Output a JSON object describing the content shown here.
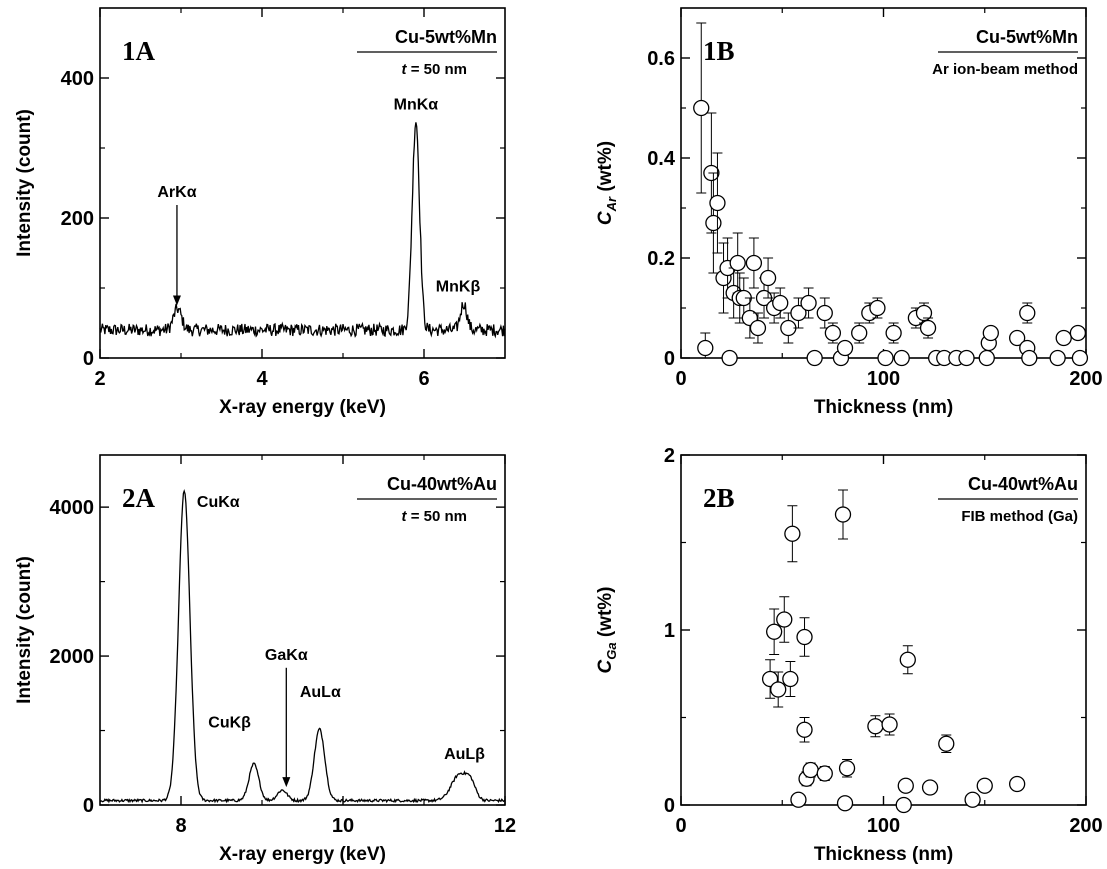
{
  "chart_data": [
    {
      "id": "1A",
      "type": "line",
      "panel_label": "1A",
      "legend": {
        "main": "Cu-5wt%Mn",
        "sub_prefix": "t",
        "sub_suffix": " = 50 nm"
      },
      "xlabel": "X-ray energy (keV)",
      "ylabel": "Intensity (count)",
      "xlim": [
        2,
        7
      ],
      "ylim": [
        0,
        500
      ],
      "xticks": [
        2,
        4,
        6
      ],
      "xtick_labels": [
        "2",
        "4",
        "6"
      ],
      "yticks": [
        0,
        200,
        400
      ],
      "ytick_labels": [
        "0",
        "200",
        "400"
      ],
      "baseline": 40,
      "noise": 9,
      "peaks": [
        {
          "center": 2.957,
          "height": 30,
          "width": 0.05
        },
        {
          "center": 5.9,
          "height": 300,
          "width": 0.045
        },
        {
          "center": 6.49,
          "height": 38,
          "width": 0.04
        }
      ],
      "annotations": [
        {
          "text": "ArKα",
          "x": 2.95,
          "y": 230,
          "arrow_to": 75
        },
        {
          "text": "MnKα",
          "x": 5.9,
          "y": 355
        },
        {
          "text": "MnKβ",
          "x": 6.42,
          "y": 95
        }
      ]
    },
    {
      "id": "1B",
      "type": "scatter",
      "panel_label": "1B",
      "legend": {
        "main": "Cu-5wt%Mn",
        "sub": "Ar ion-beam method"
      },
      "xlabel": "Thickness (nm)",
      "ylabel_sym": "C",
      "ylabel_sub": "Ar",
      "ylabel_unit": " (wt%)",
      "xlim": [
        0,
        200
      ],
      "ylim": [
        0,
        0.7
      ],
      "xticks": [
        0,
        100,
        200
      ],
      "xtick_labels": [
        "0",
        "100",
        "200"
      ],
      "yticks": [
        0,
        0.2,
        0.4,
        0.6
      ],
      "ytick_labels": [
        "0",
        "0.2",
        "0.4",
        "0.6"
      ],
      "points": [
        {
          "x": 10,
          "y": 0.5,
          "err": 0.17
        },
        {
          "x": 12,
          "y": 0.02,
          "err": 0.03
        },
        {
          "x": 15,
          "y": 0.37,
          "err": 0.12
        },
        {
          "x": 16,
          "y": 0.27,
          "err": 0.1
        },
        {
          "x": 18,
          "y": 0.31,
          "err": 0.1
        },
        {
          "x": 21,
          "y": 0.16,
          "err": 0.07
        },
        {
          "x": 23,
          "y": 0.18,
          "err": 0.06
        },
        {
          "x": 24,
          "y": 0.0,
          "err": 0
        },
        {
          "x": 26,
          "y": 0.13,
          "err": 0.05
        },
        {
          "x": 28,
          "y": 0.19,
          "err": 0.06
        },
        {
          "x": 29,
          "y": 0.12,
          "err": 0.05
        },
        {
          "x": 31,
          "y": 0.12,
          "err": 0.04
        },
        {
          "x": 34,
          "y": 0.08,
          "err": 0.04
        },
        {
          "x": 36,
          "y": 0.19,
          "err": 0.05
        },
        {
          "x": 38,
          "y": 0.06,
          "err": 0.03
        },
        {
          "x": 41,
          "y": 0.12,
          "err": 0.04
        },
        {
          "x": 43,
          "y": 0.16,
          "err": 0.04
        },
        {
          "x": 46,
          "y": 0.1,
          "err": 0.03
        },
        {
          "x": 49,
          "y": 0.11,
          "err": 0.03
        },
        {
          "x": 53,
          "y": 0.06,
          "err": 0.03
        },
        {
          "x": 58,
          "y": 0.09,
          "err": 0.03
        },
        {
          "x": 63,
          "y": 0.11,
          "err": 0.03
        },
        {
          "x": 66,
          "y": 0.0,
          "err": 0
        },
        {
          "x": 71,
          "y": 0.09,
          "err": 0.03
        },
        {
          "x": 75,
          "y": 0.05,
          "err": 0.02
        },
        {
          "x": 79,
          "y": 0.0,
          "err": 0
        },
        {
          "x": 81,
          "y": 0.02,
          "err": 0.01
        },
        {
          "x": 88,
          "y": 0.05,
          "err": 0.02
        },
        {
          "x": 93,
          "y": 0.09,
          "err": 0.02
        },
        {
          "x": 97,
          "y": 0.1,
          "err": 0.02
        },
        {
          "x": 101,
          "y": 0.0,
          "err": 0
        },
        {
          "x": 105,
          "y": 0.05,
          "err": 0.02
        },
        {
          "x": 109,
          "y": 0.0,
          "err": 0
        },
        {
          "x": 116,
          "y": 0.08,
          "err": 0.02
        },
        {
          "x": 120,
          "y": 0.09,
          "err": 0.02
        },
        {
          "x": 122,
          "y": 0.06,
          "err": 0.02
        },
        {
          "x": 126,
          "y": 0.0,
          "err": 0
        },
        {
          "x": 130,
          "y": 0.0,
          "err": 0
        },
        {
          "x": 136,
          "y": 0.0,
          "err": 0
        },
        {
          "x": 141,
          "y": 0.0,
          "err": 0
        },
        {
          "x": 151,
          "y": 0.0,
          "err": 0
        },
        {
          "x": 152,
          "y": 0.03,
          "err": 0.01
        },
        {
          "x": 153,
          "y": 0.05,
          "err": 0.01
        },
        {
          "x": 166,
          "y": 0.04,
          "err": 0.01
        },
        {
          "x": 171,
          "y": 0.09,
          "err": 0.02
        },
        {
          "x": 171,
          "y": 0.02,
          "err": 0.01
        },
        {
          "x": 172,
          "y": 0.0,
          "err": 0
        },
        {
          "x": 186,
          "y": 0.0,
          "err": 0
        },
        {
          "x": 189,
          "y": 0.04,
          "err": 0.01
        },
        {
          "x": 196,
          "y": 0.05,
          "err": 0.01
        },
        {
          "x": 197,
          "y": 0.0,
          "err": 0
        }
      ]
    },
    {
      "id": "2A",
      "type": "line",
      "panel_label": "2A",
      "legend": {
        "main": "Cu-40wt%Au",
        "sub_prefix": "t",
        "sub_suffix": " = 50 nm"
      },
      "xlabel": "X-ray energy (keV)",
      "ylabel": "Intensity (count)",
      "xlim": [
        7,
        12
      ],
      "ylim": [
        0,
        4700
      ],
      "xticks": [
        8,
        10,
        12
      ],
      "xtick_labels": [
        "8",
        "10",
        "12"
      ],
      "yticks": [
        0,
        2000,
        4000
      ],
      "ytick_labels": [
        "0",
        "2000",
        "4000"
      ],
      "baseline": 60,
      "noise": 18,
      "peaks": [
        {
          "center": 8.04,
          "height": 4150,
          "width": 0.07
        },
        {
          "center": 8.9,
          "height": 490,
          "width": 0.06
        },
        {
          "center": 9.25,
          "height": 140,
          "width": 0.06
        },
        {
          "center": 9.71,
          "height": 960,
          "width": 0.065
        },
        {
          "center": 11.44,
          "height": 350,
          "width": 0.1
        },
        {
          "center": 11.58,
          "height": 180,
          "width": 0.06
        }
      ],
      "annotations": [
        {
          "text": "CuKα",
          "x": 8.46,
          "y": 4000
        },
        {
          "text": "CuKβ",
          "x": 8.6,
          "y": 1040
        },
        {
          "text": "GaKα",
          "x": 9.3,
          "y": 1950,
          "arrow_to": 240
        },
        {
          "text": "AuLα",
          "x": 9.72,
          "y": 1450
        },
        {
          "text": "AuLβ",
          "x": 11.5,
          "y": 620
        }
      ]
    },
    {
      "id": "2B",
      "type": "scatter",
      "panel_label": "2B",
      "legend": {
        "main": "Cu-40wt%Au",
        "sub": "FIB method (Ga)"
      },
      "xlabel": "Thickness (nm)",
      "ylabel_sym": "C",
      "ylabel_sub": "Ga",
      "ylabel_unit": " (wt%)",
      "xlim": [
        0,
        200
      ],
      "ylim": [
        0,
        2
      ],
      "xticks": [
        0,
        100,
        200
      ],
      "xtick_labels": [
        "0",
        "100",
        "200"
      ],
      "yticks": [
        0,
        1,
        2
      ],
      "ytick_labels": [
        "0",
        "1",
        "2"
      ],
      "points": [
        {
          "x": 44,
          "y": 0.72,
          "err": 0.11
        },
        {
          "x": 46,
          "y": 0.99,
          "err": 0.13
        },
        {
          "x": 48,
          "y": 0.66,
          "err": 0.1
        },
        {
          "x": 51,
          "y": 1.06,
          "err": 0.13
        },
        {
          "x": 54,
          "y": 0.72,
          "err": 0.1
        },
        {
          "x": 55,
          "y": 1.55,
          "err": 0.16
        },
        {
          "x": 58,
          "y": 0.03,
          "err": 0
        },
        {
          "x": 61,
          "y": 0.96,
          "err": 0.11
        },
        {
          "x": 61,
          "y": 0.43,
          "err": 0.07
        },
        {
          "x": 62,
          "y": 0.15,
          "err": 0.04
        },
        {
          "x": 64,
          "y": 0.2,
          "err": 0.04
        },
        {
          "x": 71,
          "y": 0.18,
          "err": 0.04
        },
        {
          "x": 80,
          "y": 1.66,
          "err": 0.14
        },
        {
          "x": 81,
          "y": 0.01,
          "err": 0
        },
        {
          "x": 82,
          "y": 0.21,
          "err": 0.05
        },
        {
          "x": 96,
          "y": 0.45,
          "err": 0.06
        },
        {
          "x": 103,
          "y": 0.46,
          "err": 0.06
        },
        {
          "x": 110,
          "y": 0.0,
          "err": 0
        },
        {
          "x": 111,
          "y": 0.11,
          "err": 0.03
        },
        {
          "x": 112,
          "y": 0.83,
          "err": 0.08
        },
        {
          "x": 123,
          "y": 0.1,
          "err": 0.03
        },
        {
          "x": 131,
          "y": 0.35,
          "err": 0.05
        },
        {
          "x": 144,
          "y": 0.03,
          "err": 0
        },
        {
          "x": 150,
          "y": 0.11,
          "err": 0.02
        },
        {
          "x": 166,
          "y": 0.12,
          "err": 0.02
        }
      ]
    }
  ]
}
